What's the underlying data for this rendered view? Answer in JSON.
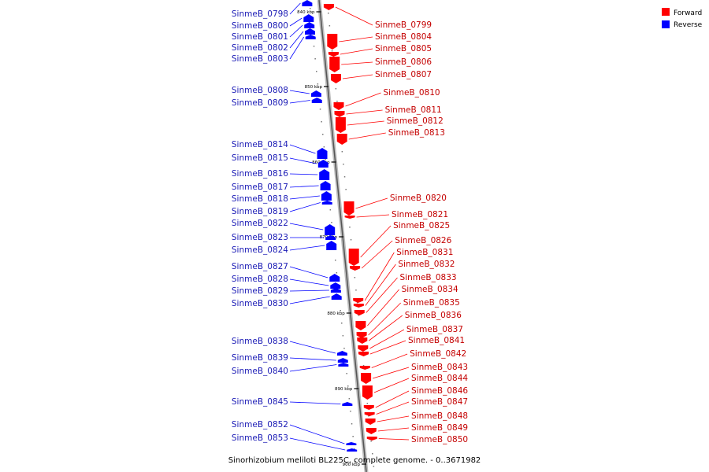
{
  "legend": {
    "forward": {
      "label": "Forward",
      "color": "#ff0000"
    },
    "reverse": {
      "label": "Reverse",
      "color": "#0000ff"
    }
  },
  "caption": "Sinorhizobium meliloti BL225C, complete genome. - 0..3671982",
  "ticks": [
    "840 kbp",
    "850 kbp",
    "860 kbp",
    "870 kbp",
    "880 kbp",
    "890 kbp",
    "900 kbp"
  ],
  "reverse_genes": [
    "SinmeB_0798",
    "SinmeB_0800",
    "SinmeB_0801",
    "SinmeB_0802",
    "SinmeB_0803",
    "SinmeB_0808",
    "SinmeB_0809",
    "SinmeB_0814",
    "SinmeB_0815",
    "SinmeB_0816",
    "SinmeB_0817",
    "SinmeB_0818",
    "SinmeB_0819",
    "SinmeB_0822",
    "SinmeB_0823",
    "SinmeB_0824",
    "SinmeB_0827",
    "SinmeB_0828",
    "SinmeB_0829",
    "SinmeB_0830",
    "SinmeB_0838",
    "SinmeB_0839",
    "SinmeB_0840",
    "SinmeB_0845",
    "SinmeB_0852",
    "SinmeB_0853"
  ],
  "forward_genes": [
    "SinmeB_0799",
    "SinmeB_0804",
    "SinmeB_0805",
    "SinmeB_0806",
    "SinmeB_0807",
    "SinmeB_0810",
    "SinmeB_0811",
    "SinmeB_0812",
    "SinmeB_0813",
    "SinmeB_0820",
    "SinmeB_0821",
    "SinmeB_0825",
    "SinmeB_0826",
    "SinmeB_0831",
    "SinmeB_0832",
    "SinmeB_0833",
    "SinmeB_0834",
    "SinmeB_0835",
    "SinmeB_0836",
    "SinmeB_0837",
    "SinmeB_0841",
    "SinmeB_0842",
    "SinmeB_0843",
    "SinmeB_0844",
    "SinmeB_0846",
    "SinmeB_0847",
    "SinmeB_0848",
    "SinmeB_0849",
    "SinmeB_0850"
  ]
}
